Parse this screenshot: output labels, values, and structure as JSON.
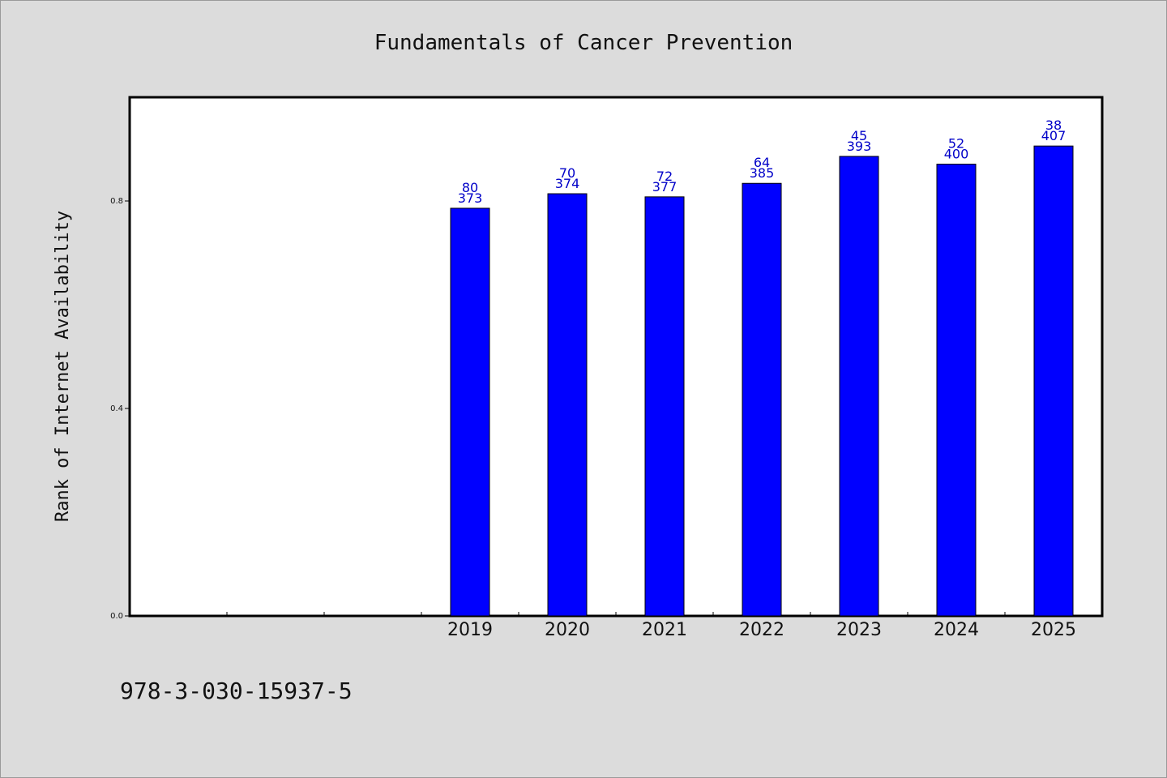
{
  "chart_data": {
    "type": "bar",
    "title": "Fundamentals of Cancer Prevention",
    "ylabel": "Rank of Internet Availability",
    "xlabel": "",
    "ylim": [
      0,
      1.0
    ],
    "yticks": [
      "0.0",
      "0.4",
      "0.8"
    ],
    "ytick_values": [
      0.0,
      0.4,
      0.8
    ],
    "categories": [
      "2019",
      "2020",
      "2021",
      "2022",
      "2023",
      "2024",
      "2025"
    ],
    "values": [
      0.786,
      0.814,
      0.808,
      0.834,
      0.886,
      0.871,
      0.906
    ],
    "label_top": [
      "80",
      "70",
      "72",
      "64",
      "45",
      "52",
      "38"
    ],
    "label_bottom": [
      "373",
      "374",
      "377",
      "385",
      "393",
      "400",
      "407"
    ],
    "bar_color": "#0000ff",
    "label_color": "#0000c8",
    "background": "#dcdcdc",
    "grid": false
  },
  "footer": {
    "isbn": "978-3-030-15937-5"
  }
}
